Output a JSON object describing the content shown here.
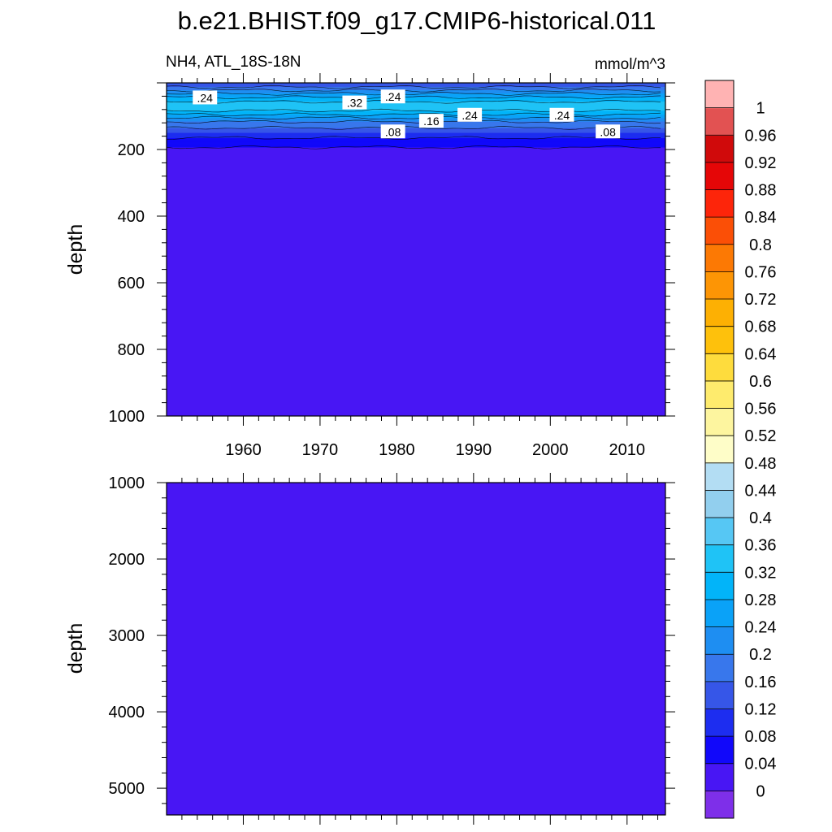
{
  "title": "b.e21.BHIST.f09_g17.CMIP6-historical.011",
  "chart_data": [
    {
      "type": "heatmap",
      "panel": "upper",
      "left_label": "NH4, ATL_18S-18N",
      "right_label": "mmol/m^3",
      "ylabel": "depth",
      "ylim": [
        0,
        1000
      ],
      "y_reversed": true,
      "xlim": [
        1950,
        2015
      ],
      "yticks": [
        "200",
        "400",
        "600",
        "800",
        "1000"
      ],
      "xticks": [
        "1960",
        "1970",
        "1980",
        "1990",
        "2000",
        "2010"
      ],
      "profile": {
        "depth": [
          0,
          10,
          20,
          30,
          40,
          50,
          60,
          70,
          80,
          90,
          100,
          110,
          120,
          130,
          140,
          150,
          160,
          170,
          180,
          190,
          200,
          1000
        ],
        "value": [
          0.13,
          0.15,
          0.19,
          0.23,
          0.27,
          0.3,
          0.33,
          0.34,
          0.33,
          0.3,
          0.26,
          0.22,
          0.19,
          0.17,
          0.15,
          0.12,
          0.09,
          0.07,
          0.06,
          0.05,
          0.02,
          0.01
        ]
      },
      "contour_labels": [
        {
          "text": ".24",
          "year": 1955,
          "depth": 45
        },
        {
          "text": ".32",
          "year": 1974.5,
          "depth": 60
        },
        {
          "text": ".24",
          "year": 1979.5,
          "depth": 42
        },
        {
          "text": ".16",
          "year": 1984.5,
          "depth": 115
        },
        {
          "text": ".24",
          "year": 1989.5,
          "depth": 97
        },
        {
          "text": ".24",
          "year": 2001.5,
          "depth": 97
        },
        {
          "text": ".08",
          "year": 1979.5,
          "depth": 147
        },
        {
          "text": ".08",
          "year": 2007.5,
          "depth": 147
        }
      ]
    },
    {
      "type": "heatmap",
      "panel": "lower",
      "ylabel": "depth",
      "ylim": [
        1000,
        5350
      ],
      "y_reversed": true,
      "xlim": [
        1950,
        2015
      ],
      "yticks": [
        "1000",
        "2000",
        "3000",
        "4000",
        "5000"
      ],
      "value": 0.01
    }
  ],
  "colorbar": {
    "levels": [
      "0",
      "0.04",
      "0.08",
      "0.12",
      "0.16",
      "0.2",
      "0.24",
      "0.28",
      "0.32",
      "0.36",
      "0.4",
      "0.44",
      "0.48",
      "0.52",
      "0.56",
      "0.6",
      "0.64",
      "0.68",
      "0.72",
      "0.76",
      "0.8",
      "0.84",
      "0.88",
      "0.92",
      "0.96",
      "1"
    ],
    "colors": [
      "#7E2FE9",
      "#4816F4",
      "#1108FA",
      "#1D2DF0",
      "#3656E8",
      "#3877EC",
      "#1E8EF2",
      "#0AA2F8",
      "#02B4F9",
      "#1FC3F6",
      "#56C7F4",
      "#92CFEE",
      "#B3DDF3",
      "#FEFDC8",
      "#FDF59F",
      "#FEEB6D",
      "#FEDC3D",
      "#FEC10C",
      "#FDB003",
      "#FD9505",
      "#FC7904",
      "#FB4F06",
      "#FD250A",
      "#E50607",
      "#D00A0B",
      "#E25252",
      "#FFB3B3"
    ]
  }
}
